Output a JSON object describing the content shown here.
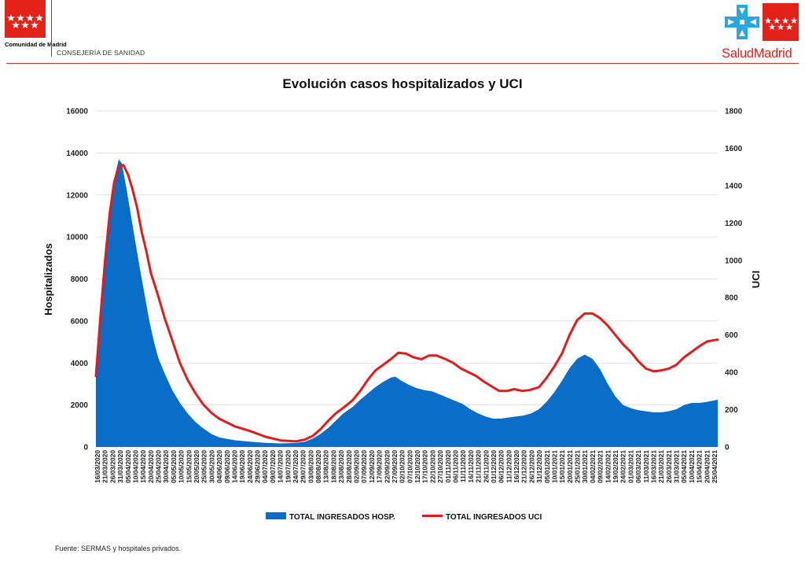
{
  "header": {
    "org_name": "Comunidad de Madrid",
    "department": "CONSEJERÍA DE SANIDAD",
    "brand": "SaludMadrid"
  },
  "footer": {
    "source": "Fuente: SERMAS y hospitales privados."
  },
  "colors": {
    "hosp_fill": "#0a6ec8",
    "uci_line": "#e21b1b",
    "flag_red": "#e3231a",
    "cross_blue": "#2aa7df"
  },
  "chart_data": {
    "type": "area",
    "title": "Evolución casos hospitalizados y UCI",
    "ylabel": "Hospitalizados",
    "y2label": "UCI",
    "ylim": [
      0,
      16000
    ],
    "y2lim": [
      0,
      1800
    ],
    "yticks": [
      0,
      2000,
      4000,
      6000,
      8000,
      10000,
      12000,
      14000,
      16000
    ],
    "y2ticks": [
      0,
      200,
      400,
      600,
      800,
      1000,
      1200,
      1400,
      1600,
      1800
    ],
    "x_start": "16/03/2020",
    "x_end": "27/04/2021",
    "x_tick_labels": [
      "16/03/2020",
      "21/03/2020",
      "26/03/2020",
      "31/03/2020",
      "05/04/2020",
      "10/04/2020",
      "15/04/2020",
      "20/04/2020",
      "25/04/2020",
      "30/04/2020",
      "05/05/2020",
      "10/05/2020",
      "15/05/2020",
      "20/05/2020",
      "25/05/2020",
      "30/05/2020",
      "04/06/2020",
      "09/06/2020",
      "14/06/2020",
      "19/06/2020",
      "24/06/2020",
      "29/06/2020",
      "04/07/2020",
      "09/07/2020",
      "14/07/2020",
      "19/07/2020",
      "24/07/2020",
      "29/07/2020",
      "03/08/2020",
      "08/08/2020",
      "13/08/2020",
      "18/08/2020",
      "23/08/2020",
      "28/08/2020",
      "02/09/2020",
      "07/09/2020",
      "12/09/2020",
      "17/09/2020",
      "22/09/2020",
      "27/09/2020",
      "02/10/2020",
      "07/10/2020",
      "12/10/2020",
      "17/10/2020",
      "22/10/2020",
      "27/10/2020",
      "01/11/2020",
      "06/11/2020",
      "11/11/2020",
      "16/11/2020",
      "21/11/2020",
      "26/11/2020",
      "01/12/2020",
      "06/12/2020",
      "11/12/2020",
      "16/12/2020",
      "21/12/2020",
      "26/12/2020",
      "31/12/2020",
      "05/01/2021",
      "10/01/2021",
      "15/01/2021",
      "20/01/2021",
      "25/01/2021",
      "30/01/2021",
      "04/02/2021",
      "09/02/2021",
      "14/02/2021",
      "19/02/2021",
      "24/02/2021",
      "01/03/2021",
      "06/03/2021",
      "11/03/2021",
      "16/03/2021",
      "21/03/2021",
      "26/03/2021",
      "31/03/2021",
      "05/04/2021",
      "10/04/2021",
      "15/04/2021",
      "20/04/2021",
      "25/04/2021"
    ],
    "series": [
      {
        "name": "TOTAL INGRESADOS HOSP.",
        "axis": "left",
        "style": "area",
        "points": [
          [
            "16/03/2020",
            3300
          ],
          [
            "19/03/2020",
            6500
          ],
          [
            "22/03/2020",
            9000
          ],
          [
            "25/03/2020",
            11300
          ],
          [
            "28/03/2020",
            12800
          ],
          [
            "31/03/2020",
            13700
          ],
          [
            "02/04/2020",
            13500
          ],
          [
            "05/04/2020",
            12300
          ],
          [
            "08/04/2020",
            11000
          ],
          [
            "11/04/2020",
            9700
          ],
          [
            "14/04/2020",
            8400
          ],
          [
            "17/04/2020",
            7200
          ],
          [
            "20/04/2020",
            6000
          ],
          [
            "23/04/2020",
            5000
          ],
          [
            "26/04/2020",
            4200
          ],
          [
            "30/04/2020",
            3500
          ],
          [
            "05/05/2020",
            2700
          ],
          [
            "10/05/2020",
            2100
          ],
          [
            "15/05/2020",
            1600
          ],
          [
            "20/05/2020",
            1200
          ],
          [
            "25/05/2020",
            900
          ],
          [
            "31/05/2020",
            600
          ],
          [
            "05/06/2020",
            450
          ],
          [
            "15/06/2020",
            320
          ],
          [
            "25/06/2020",
            250
          ],
          [
            "05/07/2020",
            200
          ],
          [
            "15/07/2020",
            170
          ],
          [
            "25/07/2020",
            190
          ],
          [
            "31/07/2020",
            250
          ],
          [
            "05/08/2020",
            400
          ],
          [
            "10/08/2020",
            620
          ],
          [
            "15/08/2020",
            900
          ],
          [
            "20/08/2020",
            1250
          ],
          [
            "25/08/2020",
            1600
          ],
          [
            "31/08/2020",
            1900
          ],
          [
            "05/09/2020",
            2250
          ],
          [
            "10/09/2020",
            2550
          ],
          [
            "15/09/2020",
            2850
          ],
          [
            "20/09/2020",
            3100
          ],
          [
            "25/09/2020",
            3300
          ],
          [
            "28/09/2020",
            3350
          ],
          [
            "02/10/2020",
            3150
          ],
          [
            "07/10/2020",
            2950
          ],
          [
            "12/10/2020",
            2800
          ],
          [
            "17/10/2020",
            2700
          ],
          [
            "22/10/2020",
            2650
          ],
          [
            "27/10/2020",
            2500
          ],
          [
            "01/11/2020",
            2350
          ],
          [
            "06/11/2020",
            2200
          ],
          [
            "11/11/2020",
            2050
          ],
          [
            "16/11/2020",
            1800
          ],
          [
            "21/11/2020",
            1600
          ],
          [
            "26/11/2020",
            1450
          ],
          [
            "01/12/2020",
            1350
          ],
          [
            "06/12/2020",
            1350
          ],
          [
            "11/12/2020",
            1400
          ],
          [
            "16/12/2020",
            1450
          ],
          [
            "21/12/2020",
            1500
          ],
          [
            "26/12/2020",
            1600
          ],
          [
            "31/12/2020",
            1800
          ],
          [
            "05/01/2021",
            2150
          ],
          [
            "10/01/2021",
            2600
          ],
          [
            "15/01/2021",
            3150
          ],
          [
            "20/01/2021",
            3750
          ],
          [
            "25/01/2021",
            4200
          ],
          [
            "30/01/2021",
            4400
          ],
          [
            "04/02/2021",
            4200
          ],
          [
            "09/02/2021",
            3700
          ],
          [
            "14/02/2021",
            3000
          ],
          [
            "19/02/2021",
            2400
          ],
          [
            "24/02/2021",
            2000
          ],
          [
            "01/03/2021",
            1850
          ],
          [
            "06/03/2021",
            1750
          ],
          [
            "11/03/2021",
            1700
          ],
          [
            "16/03/2021",
            1650
          ],
          [
            "21/03/2021",
            1650
          ],
          [
            "26/03/2021",
            1700
          ],
          [
            "31/03/2021",
            1800
          ],
          [
            "05/04/2021",
            2000
          ],
          [
            "10/04/2021",
            2100
          ],
          [
            "15/04/2021",
            2100
          ],
          [
            "20/04/2021",
            2150
          ],
          [
            "27/04/2021",
            2250
          ]
        ]
      },
      {
        "name": "TOTAL INGRESADOS UCI",
        "axis": "right",
        "style": "line",
        "points": [
          [
            "16/03/2020",
            380
          ],
          [
            "19/03/2020",
            700
          ],
          [
            "22/03/2020",
            1000
          ],
          [
            "25/03/2020",
            1250
          ],
          [
            "28/03/2020",
            1420
          ],
          [
            "31/03/2020",
            1500
          ],
          [
            "03/04/2020",
            1510
          ],
          [
            "06/04/2020",
            1460
          ],
          [
            "09/04/2020",
            1380
          ],
          [
            "12/04/2020",
            1280
          ],
          [
            "15/04/2020",
            1150
          ],
          [
            "18/04/2020",
            1050
          ],
          [
            "21/04/2020",
            930
          ],
          [
            "25/04/2020",
            830
          ],
          [
            "30/04/2020",
            690
          ],
          [
            "05/05/2020",
            570
          ],
          [
            "10/05/2020",
            450
          ],
          [
            "15/05/2020",
            360
          ],
          [
            "20/05/2020",
            290
          ],
          [
            "25/05/2020",
            230
          ],
          [
            "31/05/2020",
            180
          ],
          [
            "05/06/2020",
            150
          ],
          [
            "15/06/2020",
            110
          ],
          [
            "25/06/2020",
            85
          ],
          [
            "05/07/2020",
            55
          ],
          [
            "15/07/2020",
            35
          ],
          [
            "25/07/2020",
            30
          ],
          [
            "31/07/2020",
            40
          ],
          [
            "05/08/2020",
            60
          ],
          [
            "10/08/2020",
            95
          ],
          [
            "15/08/2020",
            140
          ],
          [
            "20/08/2020",
            180
          ],
          [
            "25/08/2020",
            210
          ],
          [
            "31/08/2020",
            250
          ],
          [
            "05/09/2020",
            300
          ],
          [
            "10/09/2020",
            360
          ],
          [
            "15/09/2020",
            410
          ],
          [
            "20/09/2020",
            440
          ],
          [
            "25/09/2020",
            470
          ],
          [
            "30/09/2020",
            505
          ],
          [
            "05/10/2020",
            500
          ],
          [
            "10/10/2020",
            480
          ],
          [
            "15/10/2020",
            470
          ],
          [
            "20/10/2020",
            490
          ],
          [
            "25/10/2020",
            490
          ],
          [
            "31/10/2020",
            470
          ],
          [
            "05/11/2020",
            450
          ],
          [
            "10/11/2020",
            420
          ],
          [
            "15/11/2020",
            400
          ],
          [
            "20/11/2020",
            380
          ],
          [
            "25/11/2020",
            350
          ],
          [
            "01/12/2020",
            320
          ],
          [
            "05/12/2020",
            300
          ],
          [
            "10/12/2020",
            300
          ],
          [
            "15/12/2020",
            310
          ],
          [
            "20/12/2020",
            300
          ],
          [
            "25/12/2020",
            305
          ],
          [
            "31/12/2020",
            320
          ],
          [
            "05/01/2021",
            370
          ],
          [
            "10/01/2021",
            430
          ],
          [
            "15/01/2021",
            500
          ],
          [
            "20/01/2021",
            600
          ],
          [
            "25/01/2021",
            680
          ],
          [
            "30/01/2021",
            715
          ],
          [
            "04/02/2021",
            715
          ],
          [
            "09/02/2021",
            690
          ],
          [
            "14/02/2021",
            650
          ],
          [
            "19/02/2021",
            600
          ],
          [
            "24/02/2021",
            550
          ],
          [
            "01/03/2021",
            510
          ],
          [
            "06/03/2021",
            460
          ],
          [
            "11/03/2021",
            420
          ],
          [
            "16/03/2021",
            405
          ],
          [
            "21/03/2021",
            410
          ],
          [
            "26/03/2021",
            420
          ],
          [
            "31/03/2021",
            440
          ],
          [
            "05/04/2021",
            480
          ],
          [
            "10/04/2021",
            510
          ],
          [
            "15/04/2021",
            540
          ],
          [
            "20/04/2021",
            565
          ],
          [
            "23/04/2021",
            570
          ],
          [
            "27/04/2021",
            575
          ]
        ]
      }
    ],
    "legend": {
      "position": "bottom",
      "entries": [
        "TOTAL INGRESADOS HOSP.",
        "TOTAL INGRESADOS UCI"
      ]
    },
    "grid": "horizontal"
  }
}
